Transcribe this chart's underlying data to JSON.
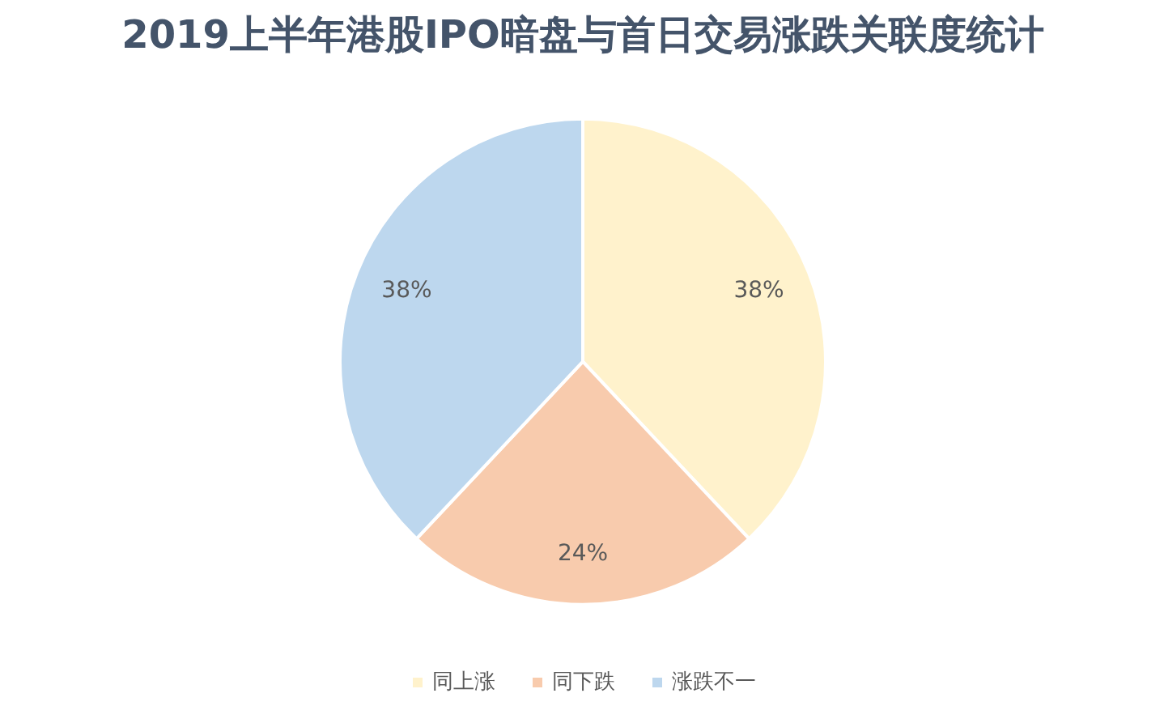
{
  "chart_data": {
    "type": "pie",
    "title": "2019上半年港股IPO暗盘与首日交易涨跌关联度统计",
    "categories": [
      "同上涨",
      "同下跌",
      "涨跌不一"
    ],
    "values": [
      38,
      24,
      38
    ],
    "colors": [
      "#fff2cc",
      "#f8cbad",
      "#bdd7ee"
    ],
    "value_labels": [
      "38%",
      "24%",
      "38%"
    ],
    "legend": "bottom"
  }
}
